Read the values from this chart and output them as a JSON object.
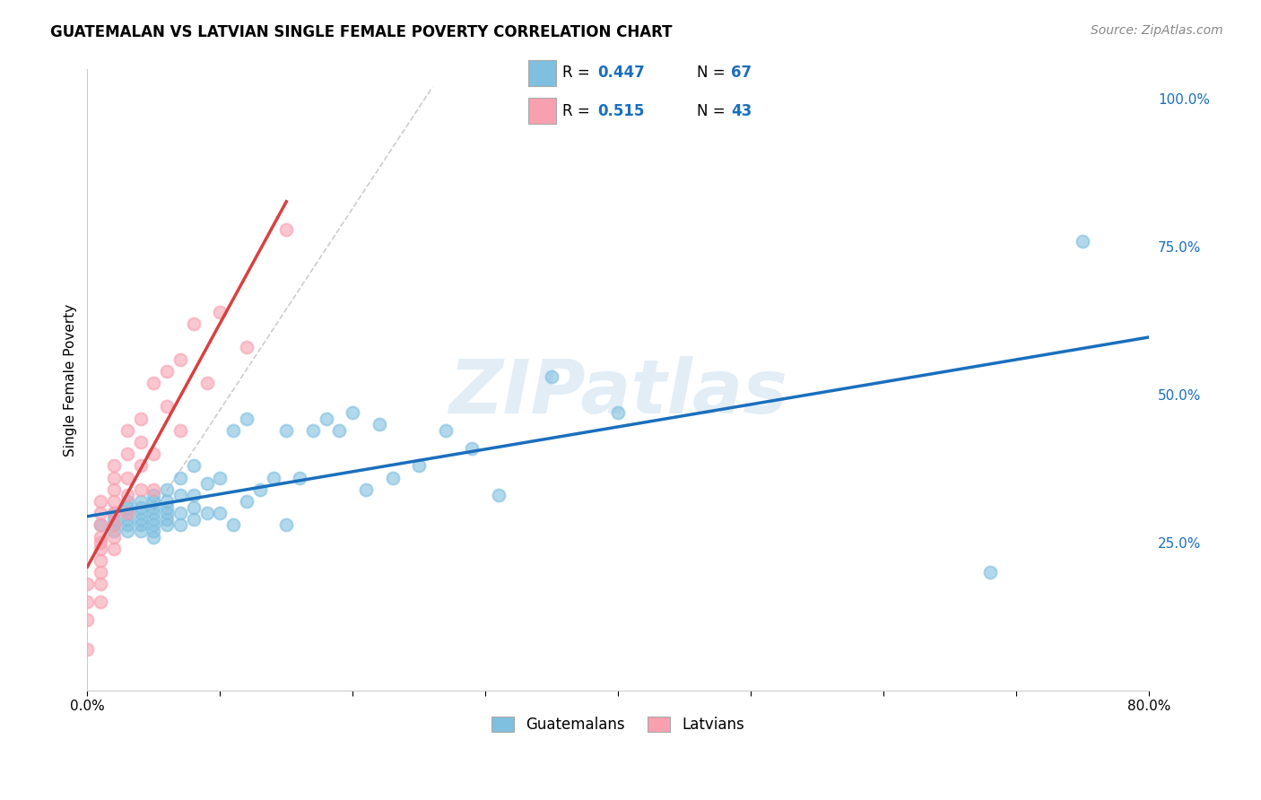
{
  "title": "GUATEMALAN VS LATVIAN SINGLE FEMALE POVERTY CORRELATION CHART",
  "source": "Source: ZipAtlas.com",
  "ylabel": "Single Female Poverty",
  "xlim": [
    0.0,
    0.8
  ],
  "ylim": [
    0.0,
    1.05
  ],
  "xticks": [
    0.0,
    0.1,
    0.2,
    0.3,
    0.4,
    0.5,
    0.6,
    0.7,
    0.8
  ],
  "xticklabels": [
    "0.0%",
    "",
    "",
    "",
    "",
    "",
    "",
    "",
    "80.0%"
  ],
  "ytick_right_labels": [
    "25.0%",
    "50.0%",
    "75.0%",
    "100.0%"
  ],
  "ytick_right_values": [
    0.25,
    0.5,
    0.75,
    1.0
  ],
  "watermark": "ZIPatlas",
  "blue_color": "#7fbfdf",
  "pink_color": "#f8a0b0",
  "trend_blue": "#1a6fbd",
  "trend_pink": "#d94040",
  "trend_gray": "#c0c0c0",
  "guatemalan_x": [
    0.01,
    0.02,
    0.02,
    0.02,
    0.02,
    0.03,
    0.03,
    0.03,
    0.03,
    0.03,
    0.03,
    0.04,
    0.04,
    0.04,
    0.04,
    0.04,
    0.04,
    0.05,
    0.05,
    0.05,
    0.05,
    0.05,
    0.05,
    0.05,
    0.05,
    0.06,
    0.06,
    0.06,
    0.06,
    0.06,
    0.06,
    0.07,
    0.07,
    0.07,
    0.07,
    0.08,
    0.08,
    0.08,
    0.08,
    0.09,
    0.09,
    0.1,
    0.1,
    0.11,
    0.11,
    0.12,
    0.12,
    0.13,
    0.14,
    0.15,
    0.15,
    0.16,
    0.17,
    0.18,
    0.19,
    0.2,
    0.21,
    0.22,
    0.23,
    0.25,
    0.27,
    0.29,
    0.31,
    0.35,
    0.4,
    0.68,
    0.75
  ],
  "guatemalan_y": [
    0.28,
    0.27,
    0.28,
    0.29,
    0.3,
    0.27,
    0.28,
    0.29,
    0.3,
    0.31,
    0.32,
    0.27,
    0.28,
    0.29,
    0.3,
    0.31,
    0.32,
    0.26,
    0.27,
    0.28,
    0.29,
    0.3,
    0.31,
    0.32,
    0.33,
    0.28,
    0.29,
    0.3,
    0.31,
    0.32,
    0.34,
    0.28,
    0.3,
    0.33,
    0.36,
    0.29,
    0.31,
    0.33,
    0.38,
    0.3,
    0.35,
    0.3,
    0.36,
    0.28,
    0.44,
    0.32,
    0.46,
    0.34,
    0.36,
    0.28,
    0.44,
    0.36,
    0.44,
    0.46,
    0.44,
    0.47,
    0.34,
    0.45,
    0.36,
    0.38,
    0.44,
    0.41,
    0.33,
    0.53,
    0.47,
    0.2,
    0.76
  ],
  "latvian_x": [
    0.0,
    0.0,
    0.0,
    0.0,
    0.01,
    0.01,
    0.01,
    0.01,
    0.01,
    0.01,
    0.01,
    0.01,
    0.01,
    0.01,
    0.02,
    0.02,
    0.02,
    0.02,
    0.02,
    0.02,
    0.02,
    0.02,
    0.03,
    0.03,
    0.03,
    0.03,
    0.03,
    0.04,
    0.04,
    0.04,
    0.04,
    0.05,
    0.05,
    0.05,
    0.06,
    0.06,
    0.07,
    0.07,
    0.08,
    0.09,
    0.1,
    0.12,
    0.15
  ],
  "latvian_y": [
    0.07,
    0.12,
    0.15,
    0.18,
    0.15,
    0.18,
    0.2,
    0.22,
    0.24,
    0.25,
    0.26,
    0.28,
    0.3,
    0.32,
    0.24,
    0.26,
    0.28,
    0.3,
    0.32,
    0.34,
    0.36,
    0.38,
    0.3,
    0.33,
    0.36,
    0.4,
    0.44,
    0.34,
    0.38,
    0.42,
    0.46,
    0.34,
    0.4,
    0.52,
    0.48,
    0.54,
    0.44,
    0.56,
    0.62,
    0.52,
    0.64,
    0.58,
    0.78
  ]
}
